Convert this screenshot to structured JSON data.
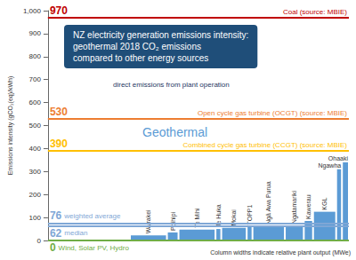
{
  "chart_data": {
    "type": "bar",
    "title": "NZ electricity generation emissions intensity:\ngeothermal 2018 CO₂ emissions\ncompared to other energy sources",
    "subtitle": "direct emissions from plant operation",
    "y_label": "Emissions intensity (gCO₂(eq)/kWh)",
    "categories": [
      "Wairakei",
      "Poihipi",
      "Te Mihi",
      "Te Huka",
      "Mokai",
      "TOPP1",
      "Ngā Awa Purua",
      "Ngatamariki",
      "Kawerau",
      "KGL",
      "Ngawha",
      "Ohaaki"
    ],
    "values": [
      22,
      35,
      47,
      50,
      55,
      60,
      62,
      65,
      85,
      125,
      310,
      340
    ],
    "widths": [
      160,
      50,
      160,
      25,
      110,
      25,
      140,
      82,
      40,
      100,
      25,
      30
    ],
    "color": "#5b9bd5",
    "reference_lines": [
      {
        "value": 970,
        "label": "Coal (source: MBIE)",
        "color": "#c00000"
      },
      {
        "value": 530,
        "label": "Open cycle gas turbine (OCGT) (source: MBIE)",
        "color": "#ed7d31"
      },
      {
        "value": 390,
        "label": "Combined cycle gas turbine (CCGT) (source: MBIE)",
        "color": "#ffc000"
      },
      {
        "value": 76,
        "label": "weighted average",
        "color": "#7fa7d6"
      },
      {
        "value": 62,
        "label": "median",
        "color": "#7fa7d6"
      },
      {
        "value": 0,
        "label": "Wind, Solar PV, Hydro",
        "color": "#70ad47"
      }
    ],
    "annotations": [
      "Geothermal",
      "Column widths indicate relative plant output (MWe)"
    ],
    "ylim": [
      0,
      1000
    ],
    "yticks": [
      0,
      100,
      200,
      300,
      400,
      500,
      600,
      700,
      800,
      900,
      1000
    ],
    "grid": false,
    "tick_labels": "y"
  }
}
